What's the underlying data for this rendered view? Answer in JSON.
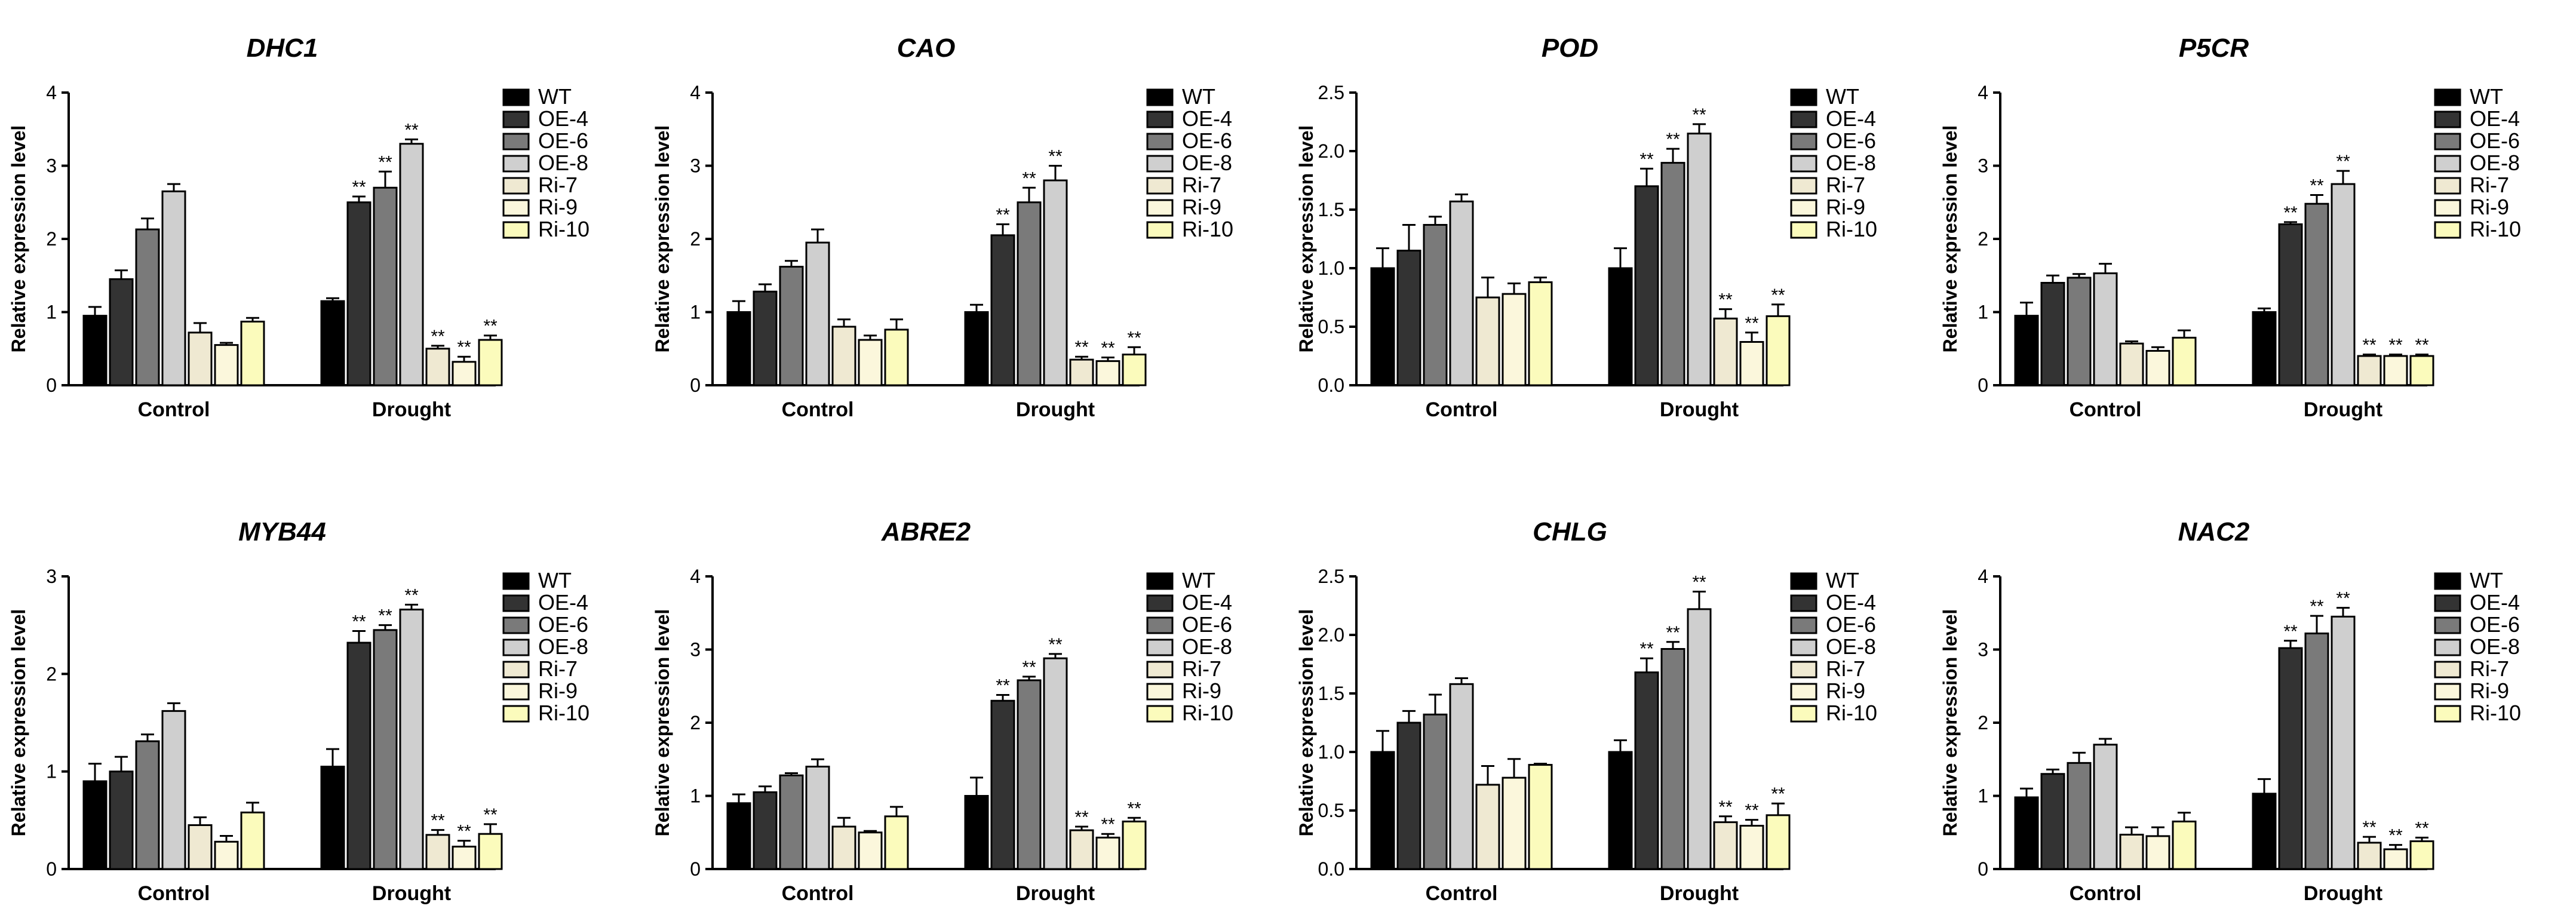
{
  "figure": {
    "background": "#ffffff",
    "series_names": [
      "WT",
      "OE-4",
      "OE-6",
      "OE-8",
      "Ri-7",
      "Ri-9",
      "Ri-10"
    ],
    "series_colors": [
      "#000000",
      "#333333",
      "#7a7a7a",
      "#cfcfcf",
      "#efe9d2",
      "#fbf7dc",
      "#fbfbbc"
    ]
  },
  "chart_data": [
    {
      "type": "bar",
      "title": "DHC1",
      "ylabel": "Relative expression level",
      "categories": [
        "Control",
        "Drought"
      ],
      "ylim": [
        0,
        4
      ],
      "yticks": [
        "0",
        "1",
        "2",
        "3",
        "4"
      ],
      "series": [
        {
          "name": "WT",
          "values": [
            0.95,
            1.15
          ],
          "errors": [
            0.12,
            0.04
          ],
          "sig": [
            "",
            ""
          ]
        },
        {
          "name": "OE-4",
          "values": [
            1.45,
            2.5
          ],
          "errors": [
            0.12,
            0.08
          ],
          "sig": [
            "",
            "**"
          ]
        },
        {
          "name": "OE-6",
          "values": [
            2.13,
            2.7
          ],
          "errors": [
            0.15,
            0.22
          ],
          "sig": [
            "",
            "**"
          ]
        },
        {
          "name": "OE-8",
          "values": [
            2.65,
            3.3
          ],
          "errors": [
            0.1,
            0.06
          ],
          "sig": [
            "",
            "**"
          ]
        },
        {
          "name": "Ri-7",
          "values": [
            0.72,
            0.5
          ],
          "errors": [
            0.13,
            0.04
          ],
          "sig": [
            "",
            "**"
          ]
        },
        {
          "name": "Ri-9",
          "values": [
            0.55,
            0.32
          ],
          "errors": [
            0.03,
            0.07
          ],
          "sig": [
            "",
            "**"
          ]
        },
        {
          "name": "Ri-10",
          "values": [
            0.87,
            0.62
          ],
          "errors": [
            0.05,
            0.06
          ],
          "sig": [
            "",
            "**"
          ]
        }
      ]
    },
    {
      "type": "bar",
      "title": "CAO",
      "ylabel": "Relative expression level",
      "categories": [
        "Control",
        "Drought"
      ],
      "ylim": [
        0,
        4
      ],
      "yticks": [
        "0",
        "1",
        "2",
        "3",
        "4"
      ],
      "series": [
        {
          "name": "WT",
          "values": [
            1.0,
            1.0
          ],
          "errors": [
            0.15,
            0.1
          ],
          "sig": [
            "",
            ""
          ]
        },
        {
          "name": "OE-4",
          "values": [
            1.28,
            2.05
          ],
          "errors": [
            0.1,
            0.15
          ],
          "sig": [
            "",
            "**"
          ]
        },
        {
          "name": "OE-6",
          "values": [
            1.62,
            2.5
          ],
          "errors": [
            0.08,
            0.2
          ],
          "sig": [
            "",
            "**"
          ]
        },
        {
          "name": "OE-8",
          "values": [
            1.95,
            2.8
          ],
          "errors": [
            0.18,
            0.2
          ],
          "sig": [
            "",
            "**"
          ]
        },
        {
          "name": "Ri-7",
          "values": [
            0.8,
            0.35
          ],
          "errors": [
            0.1,
            0.04
          ],
          "sig": [
            "",
            "**"
          ]
        },
        {
          "name": "Ri-9",
          "values": [
            0.62,
            0.33
          ],
          "errors": [
            0.06,
            0.05
          ],
          "sig": [
            "",
            "**"
          ]
        },
        {
          "name": "Ri-10",
          "values": [
            0.76,
            0.42
          ],
          "errors": [
            0.14,
            0.1
          ],
          "sig": [
            "",
            "**"
          ]
        }
      ]
    },
    {
      "type": "bar",
      "title": "POD",
      "ylabel": "Relative expression level",
      "categories": [
        "Control",
        "Drought"
      ],
      "ylim": [
        0,
        2.5
      ],
      "yticks": [
        "0.0",
        "0.5",
        "1.0",
        "1.5",
        "2.0",
        "2.5"
      ],
      "series": [
        {
          "name": "WT",
          "values": [
            1.0,
            1.0
          ],
          "errors": [
            0.17,
            0.17
          ],
          "sig": [
            "",
            ""
          ]
        },
        {
          "name": "OE-4",
          "values": [
            1.15,
            1.7
          ],
          "errors": [
            0.22,
            0.15
          ],
          "sig": [
            "",
            "**"
          ]
        },
        {
          "name": "OE-6",
          "values": [
            1.37,
            1.9
          ],
          "errors": [
            0.07,
            0.12
          ],
          "sig": [
            "",
            "**"
          ]
        },
        {
          "name": "OE-8",
          "values": [
            1.57,
            2.15
          ],
          "errors": [
            0.06,
            0.08
          ],
          "sig": [
            "",
            "**"
          ]
        },
        {
          "name": "Ri-7",
          "values": [
            0.75,
            0.57
          ],
          "errors": [
            0.17,
            0.08
          ],
          "sig": [
            "",
            "**"
          ]
        },
        {
          "name": "Ri-9",
          "values": [
            0.78,
            0.37
          ],
          "errors": [
            0.09,
            0.08
          ],
          "sig": [
            "",
            "**"
          ]
        },
        {
          "name": "Ri-10",
          "values": [
            0.88,
            0.59
          ],
          "errors": [
            0.04,
            0.1
          ],
          "sig": [
            "",
            "**"
          ]
        }
      ]
    },
    {
      "type": "bar",
      "title": "P5CR",
      "ylabel": "Relative expression level",
      "categories": [
        "Control",
        "Drought"
      ],
      "ylim": [
        0,
        4
      ],
      "yticks": [
        "0",
        "1",
        "2",
        "3",
        "4"
      ],
      "series": [
        {
          "name": "WT",
          "values": [
            0.95,
            1.0
          ],
          "errors": [
            0.18,
            0.05
          ],
          "sig": [
            "",
            ""
          ]
        },
        {
          "name": "OE-4",
          "values": [
            1.4,
            2.2
          ],
          "errors": [
            0.1,
            0.03
          ],
          "sig": [
            "",
            "**"
          ]
        },
        {
          "name": "OE-6",
          "values": [
            1.47,
            2.48
          ],
          "errors": [
            0.05,
            0.12
          ],
          "sig": [
            "",
            "**"
          ]
        },
        {
          "name": "OE-8",
          "values": [
            1.53,
            2.75
          ],
          "errors": [
            0.13,
            0.18
          ],
          "sig": [
            "",
            "**"
          ]
        },
        {
          "name": "Ri-7",
          "values": [
            0.57,
            0.4
          ],
          "errors": [
            0.03,
            0.02
          ],
          "sig": [
            "",
            "**"
          ]
        },
        {
          "name": "Ri-9",
          "values": [
            0.47,
            0.4
          ],
          "errors": [
            0.05,
            0.02
          ],
          "sig": [
            "",
            "**"
          ]
        },
        {
          "name": "Ri-10",
          "values": [
            0.65,
            0.4
          ],
          "errors": [
            0.1,
            0.02
          ],
          "sig": [
            "",
            "**"
          ]
        }
      ]
    },
    {
      "type": "bar",
      "title": "MYB44",
      "ylabel": "Relative expression level",
      "categories": [
        "Control",
        "Drought"
      ],
      "ylim": [
        0,
        3
      ],
      "yticks": [
        "0",
        "1",
        "2",
        "3"
      ],
      "series": [
        {
          "name": "WT",
          "values": [
            0.9,
            1.05
          ],
          "errors": [
            0.18,
            0.18
          ],
          "sig": [
            "",
            ""
          ]
        },
        {
          "name": "OE-4",
          "values": [
            1.0,
            2.32
          ],
          "errors": [
            0.15,
            0.12
          ],
          "sig": [
            "",
            "**"
          ]
        },
        {
          "name": "OE-6",
          "values": [
            1.31,
            2.45
          ],
          "errors": [
            0.07,
            0.05
          ],
          "sig": [
            "",
            "**"
          ]
        },
        {
          "name": "OE-8",
          "values": [
            1.62,
            2.66
          ],
          "errors": [
            0.08,
            0.05
          ],
          "sig": [
            "",
            "**"
          ]
        },
        {
          "name": "Ri-7",
          "values": [
            0.45,
            0.35
          ],
          "errors": [
            0.08,
            0.05
          ],
          "sig": [
            "",
            "**"
          ]
        },
        {
          "name": "Ri-9",
          "values": [
            0.28,
            0.23
          ],
          "errors": [
            0.06,
            0.06
          ],
          "sig": [
            "",
            "**"
          ]
        },
        {
          "name": "Ri-10",
          "values": [
            0.58,
            0.36
          ],
          "errors": [
            0.1,
            0.1
          ],
          "sig": [
            "",
            "**"
          ]
        }
      ]
    },
    {
      "type": "bar",
      "title": "ABRE2",
      "ylabel": "Relative expression level",
      "categories": [
        "Control",
        "Drought"
      ],
      "ylim": [
        0,
        4
      ],
      "yticks": [
        "0",
        "1",
        "2",
        "3",
        "4"
      ],
      "series": [
        {
          "name": "WT",
          "values": [
            0.9,
            1.0
          ],
          "errors": [
            0.12,
            0.25
          ],
          "sig": [
            "",
            ""
          ]
        },
        {
          "name": "OE-4",
          "values": [
            1.05,
            2.3
          ],
          "errors": [
            0.08,
            0.08
          ],
          "sig": [
            "",
            "**"
          ]
        },
        {
          "name": "OE-6",
          "values": [
            1.28,
            2.58
          ],
          "errors": [
            0.03,
            0.05
          ],
          "sig": [
            "",
            "**"
          ]
        },
        {
          "name": "OE-8",
          "values": [
            1.4,
            2.88
          ],
          "errors": [
            0.1,
            0.06
          ],
          "sig": [
            "",
            "**"
          ]
        },
        {
          "name": "Ri-7",
          "values": [
            0.58,
            0.53
          ],
          "errors": [
            0.12,
            0.05
          ],
          "sig": [
            "",
            "**"
          ]
        },
        {
          "name": "Ri-9",
          "values": [
            0.5,
            0.43
          ],
          "errors": [
            0.02,
            0.05
          ],
          "sig": [
            "",
            "**"
          ]
        },
        {
          "name": "Ri-10",
          "values": [
            0.72,
            0.65
          ],
          "errors": [
            0.13,
            0.05
          ],
          "sig": [
            "",
            "**"
          ]
        }
      ]
    },
    {
      "type": "bar",
      "title": "CHLG",
      "ylabel": "Relative expression level",
      "categories": [
        "Control",
        "Drought"
      ],
      "ylim": [
        0,
        2.5
      ],
      "yticks": [
        "0.0",
        "0.5",
        "1.0",
        "1.5",
        "2.0",
        "2.5"
      ],
      "series": [
        {
          "name": "WT",
          "values": [
            1.0,
            1.0
          ],
          "errors": [
            0.18,
            0.1
          ],
          "sig": [
            "",
            ""
          ]
        },
        {
          "name": "OE-4",
          "values": [
            1.25,
            1.68
          ],
          "errors": [
            0.1,
            0.12
          ],
          "sig": [
            "",
            "**"
          ]
        },
        {
          "name": "OE-6",
          "values": [
            1.32,
            1.88
          ],
          "errors": [
            0.17,
            0.06
          ],
          "sig": [
            "",
            "**"
          ]
        },
        {
          "name": "OE-8",
          "values": [
            1.58,
            2.22
          ],
          "errors": [
            0.05,
            0.15
          ],
          "sig": [
            "",
            "**"
          ]
        },
        {
          "name": "Ri-7",
          "values": [
            0.72,
            0.4
          ],
          "errors": [
            0.16,
            0.05
          ],
          "sig": [
            "",
            "**"
          ]
        },
        {
          "name": "Ri-9",
          "values": [
            0.78,
            0.37
          ],
          "errors": [
            0.16,
            0.05
          ],
          "sig": [
            "",
            "**"
          ]
        },
        {
          "name": "Ri-10",
          "values": [
            0.89,
            0.46
          ],
          "errors": [
            0.01,
            0.1
          ],
          "sig": [
            "",
            "**"
          ]
        }
      ]
    },
    {
      "type": "bar",
      "title": "NAC2",
      "ylabel": "Relative expression level",
      "categories": [
        "Control",
        "Drought"
      ],
      "ylim": [
        0,
        4
      ],
      "yticks": [
        "0",
        "1",
        "2",
        "3",
        "4"
      ],
      "series": [
        {
          "name": "WT",
          "values": [
            0.98,
            1.03
          ],
          "errors": [
            0.12,
            0.2
          ],
          "sig": [
            "",
            ""
          ]
        },
        {
          "name": "OE-4",
          "values": [
            1.3,
            3.02
          ],
          "errors": [
            0.06,
            0.1
          ],
          "sig": [
            "",
            "**"
          ]
        },
        {
          "name": "OE-6",
          "values": [
            1.45,
            3.22
          ],
          "errors": [
            0.14,
            0.24
          ],
          "sig": [
            "",
            "**"
          ]
        },
        {
          "name": "OE-8",
          "values": [
            1.7,
            3.45
          ],
          "errors": [
            0.08,
            0.12
          ],
          "sig": [
            "",
            "**"
          ]
        },
        {
          "name": "Ri-7",
          "values": [
            0.47,
            0.36
          ],
          "errors": [
            0.1,
            0.08
          ],
          "sig": [
            "",
            "**"
          ]
        },
        {
          "name": "Ri-9",
          "values": [
            0.45,
            0.27
          ],
          "errors": [
            0.12,
            0.06
          ],
          "sig": [
            "",
            "**"
          ]
        },
        {
          "name": "Ri-10",
          "values": [
            0.65,
            0.38
          ],
          "errors": [
            0.12,
            0.05
          ],
          "sig": [
            "",
            "**"
          ]
        }
      ]
    }
  ]
}
